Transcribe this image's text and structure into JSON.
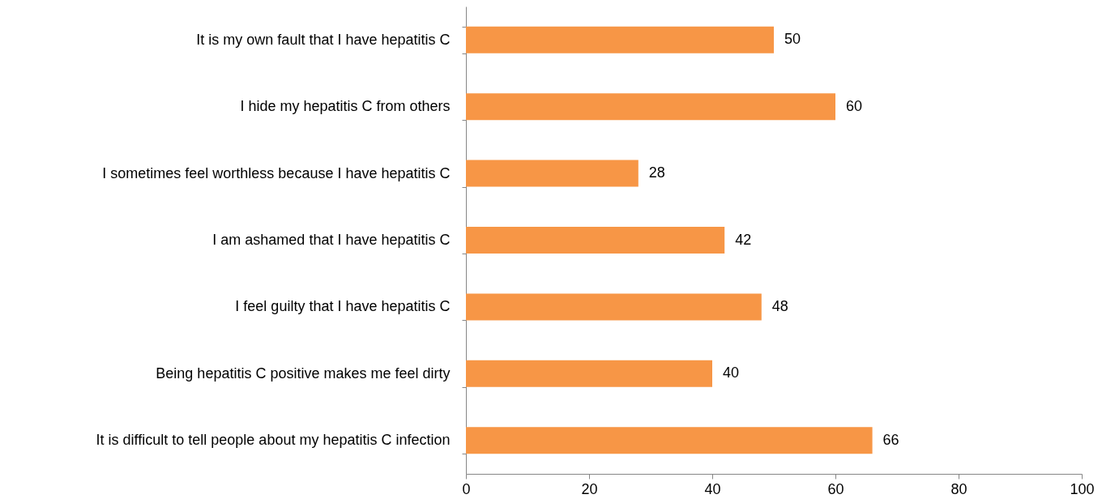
{
  "chart_data": {
    "type": "bar",
    "orientation": "horizontal",
    "categories": [
      "It is my own fault that I have hepatitis C",
      "I hide my hepatitis C from others",
      "I sometimes feel worthless because I have hepatitis C",
      "I am ashamed that I have hepatitis C",
      "I feel guilty that I have hepatitis C",
      "Being hepatitis C positive makes me feel dirty",
      "It is difficult to tell people about my hepatitis C infection"
    ],
    "values": [
      50,
      60,
      28,
      42,
      48,
      40,
      66
    ],
    "color": "#f79646",
    "xlim": [
      0,
      100
    ],
    "xticks": [
      0,
      20,
      40,
      60,
      80,
      100
    ],
    "data_labels": true,
    "grid": false
  }
}
